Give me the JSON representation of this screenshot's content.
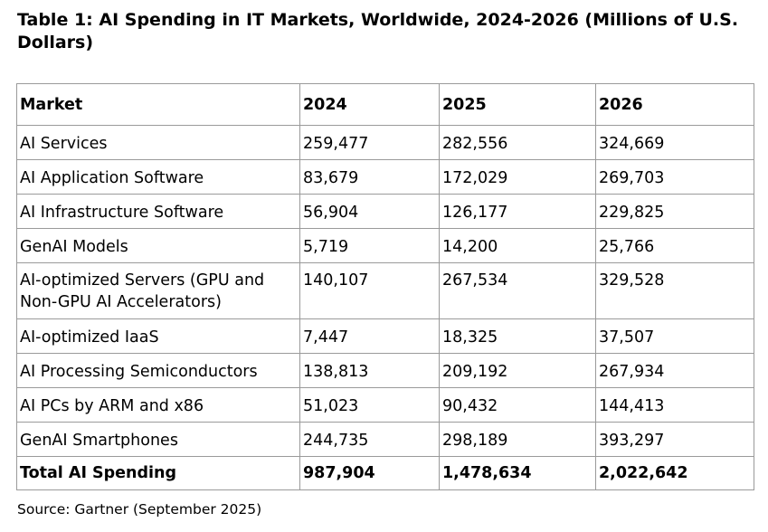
{
  "title": "Table 1: AI Spending in IT Markets, Worldwide, 2024-2026 (Millions of U.S. Dollars)",
  "table": {
    "headers": [
      "Market",
      "2024",
      "2025",
      "2026"
    ],
    "rows": [
      [
        "AI Services",
        "259,477",
        "282,556",
        "324,669"
      ],
      [
        "AI Application Software",
        "83,679",
        "172,029",
        "269,703"
      ],
      [
        "AI Infrastructure Software",
        "56,904",
        "126,177",
        "229,825"
      ],
      [
        "GenAI Models",
        "5,719",
        "14,200",
        "25,766"
      ],
      [
        "AI-optimized Servers (GPU and Non-GPU AI Accelerators)",
        "140,107",
        "267,534",
        "329,528"
      ],
      [
        "AI-optimized IaaS",
        "7,447",
        "18,325",
        "37,507"
      ],
      [
        "AI Processing Semiconductors",
        "138,813",
        "209,192",
        "267,934"
      ],
      [
        "AI PCs by ARM and x86",
        "51,023",
        "90,432",
        "144,413"
      ],
      [
        "GenAI Smartphones",
        "244,735",
        "298,189",
        "393,297"
      ]
    ],
    "total": [
      "Total AI Spending",
      "987,904",
      "1,478,634",
      "2,022,642"
    ]
  },
  "source": "Source: Gartner (September 2025)"
}
